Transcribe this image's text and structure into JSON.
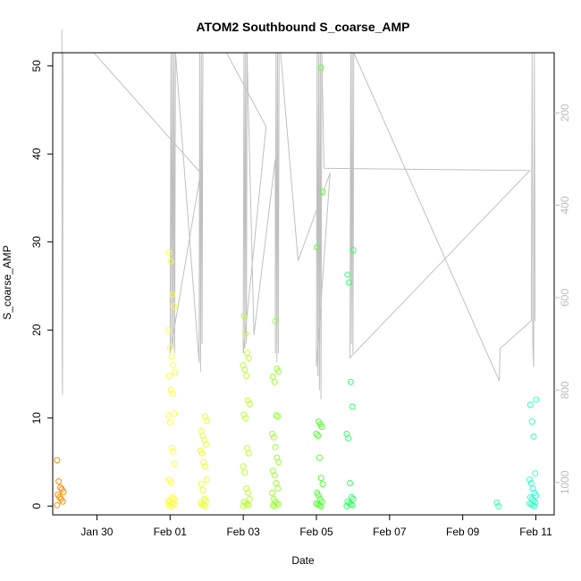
{
  "chart_data": {
    "type": "scatter",
    "title": "ATOM2 Southbound S_coarse_AMP",
    "xlabel": "Date",
    "ylabel": "S_coarse_AMP",
    "x_ticks": [
      "Jan 30",
      "Feb 01",
      "Feb 03",
      "Feb 05",
      "Feb 07",
      "Feb 09",
      "Feb 11"
    ],
    "y_ticks": [
      0,
      10,
      20,
      30,
      40,
      50
    ],
    "y_right_ticks": [
      200,
      400,
      600,
      800,
      1000
    ],
    "xlim": [
      "2025-01-28T19:00",
      "2025-02-11T12:00"
    ],
    "ylim": [
      -1,
      51.5
    ],
    "y_right_lim": [
      1070,
      70
    ],
    "grid": false,
    "point_clusters": [
      {
        "x": "2025-01-29T00:00",
        "color": "#ff8c00",
        "values": [
          0.1,
          0.5,
          0.8,
          1.0,
          1.3,
          1.6,
          1.9,
          2.1,
          2.8,
          5.2
        ]
      },
      {
        "x": "2025-02-01T01:00",
        "color": "#ffff33",
        "values": [
          0.0,
          0.1,
          0.2,
          0.3,
          0.4,
          0.5,
          0.6,
          0.8,
          1.0,
          2.7,
          3.0,
          4.8,
          6.2,
          6.6,
          9.5,
          10.3,
          10.5,
          12.8,
          13.2,
          14.8,
          15.2,
          16.0,
          17.0,
          18.0,
          20.0,
          22.7,
          24.0,
          27.8,
          28.8
        ]
      },
      {
        "x": "2025-02-01T22:00",
        "color": "#eaff33",
        "values": [
          0.0,
          0.1,
          0.2,
          0.4,
          0.6,
          0.8,
          1.8,
          2.5,
          3.0,
          4.5,
          5.0,
          6.0,
          6.3,
          7.0,
          7.5,
          8.0,
          8.5,
          9.7,
          10.2
        ]
      },
      {
        "x": "2025-02-03T02:00",
        "color": "#bbff33",
        "values": [
          0.0,
          0.1,
          0.2,
          0.3,
          0.5,
          0.8,
          1.5,
          2.0,
          3.8,
          4.5,
          6.0,
          6.6,
          10.0,
          10.4,
          11.6,
          12.0,
          14.8,
          15.5,
          16.0,
          16.8,
          17.4,
          19.6,
          21.6
        ]
      },
      {
        "x": "2025-02-03T21:00",
        "color": "#99ff33",
        "values": [
          0.0,
          0.1,
          0.2,
          0.3,
          0.5,
          0.8,
          1.5,
          2.0,
          2.6,
          3.5,
          4.0,
          5.0,
          5.5,
          6.7,
          7.8,
          8.2,
          10.2,
          10.3,
          14.1,
          14.7,
          15.3,
          15.6,
          21.0
        ]
      },
      {
        "x": "2025-02-05T02:00",
        "color": "#55ff33",
        "values": [
          0.0,
          0.1,
          0.2,
          0.3,
          0.5,
          0.8,
          1.2,
          1.5,
          2.5,
          3.2,
          5.5,
          8.0,
          8.2,
          9.0,
          9.3,
          9.6,
          29.4,
          35.7,
          49.8
        ]
      },
      {
        "x": "2025-02-05T22:00",
        "color": "#33ff66",
        "values": [
          0.0,
          0.1,
          0.2,
          0.3,
          0.5,
          0.8,
          1.0,
          2.6,
          7.7,
          8.2,
          11.3,
          14.1,
          25.4,
          26.3,
          29.1
        ]
      },
      {
        "x": "2025-02-10T00:00",
        "color": "#33ffaa",
        "values": [
          0.0,
          0.4
        ]
      },
      {
        "x": "2025-02-10T22:00",
        "color": "#33ffcc",
        "values": [
          0.0,
          0.1,
          0.2,
          0.3,
          0.4,
          0.6,
          0.8,
          1.0,
          1.2,
          1.5,
          2.0,
          2.6,
          3.0,
          3.7,
          7.9,
          9.6,
          11.5,
          12.1
        ]
      }
    ],
    "grey_line": {
      "color": "#c0c0c0",
      "points": [
        [
          "2025-01-29T01:00",
          20
        ],
        [
          "2025-01-29T01:12",
          730
        ],
        [
          "2025-01-29T01:24",
          810
        ],
        [
          "2025-01-29T01:48",
          70
        ],
        [
          "2025-01-29T22:00",
          70
        ],
        [
          "2025-02-01T20:00",
          330
        ],
        [
          "2025-02-01T00:00",
          720
        ],
        [
          "2025-02-01T00:30",
          70
        ],
        [
          "2025-02-01T01:00",
          700
        ],
        [
          "2025-02-01T01:30",
          70
        ],
        [
          "2025-02-01T02:00",
          710
        ],
        [
          "2025-02-01T02:30",
          70
        ],
        [
          "2025-02-01T03:00",
          720
        ],
        [
          "2025-02-01T03:30",
          70
        ],
        [
          "2025-02-01T19:00",
          740
        ],
        [
          "2025-02-01T19:30",
          70
        ],
        [
          "2025-02-01T20:00",
          760
        ],
        [
          "2025-02-01T20:30",
          70
        ],
        [
          "2025-02-01T21:00",
          700
        ],
        [
          "2025-02-01T21:30",
          70
        ],
        [
          "2025-02-02T13:00",
          70
        ],
        [
          "2025-02-03T15:00",
          230
        ],
        [
          "2025-02-03T00:00",
          720
        ],
        [
          "2025-02-03T00:30",
          70
        ],
        [
          "2025-02-03T01:00",
          710
        ],
        [
          "2025-02-03T01:30",
          70
        ],
        [
          "2025-02-03T02:00",
          700
        ],
        [
          "2025-02-03T02:30",
          70
        ],
        [
          "2025-02-03T07:00",
          680
        ],
        [
          "2025-02-03T21:00",
          300
        ],
        [
          "2025-02-03T21:00",
          720
        ],
        [
          "2025-02-03T21:30",
          70
        ],
        [
          "2025-02-03T22:00",
          740
        ],
        [
          "2025-02-03T22:30",
          70
        ],
        [
          "2025-02-03T23:00",
          720
        ],
        [
          "2025-02-03T23:30",
          70
        ],
        [
          "2025-02-04T00:30",
          70
        ],
        [
          "2025-02-04T12:00",
          520
        ],
        [
          "2025-02-05T09:00",
          330
        ],
        [
          "2025-02-05T00:00",
          750
        ],
        [
          "2025-02-05T00:30",
          70
        ],
        [
          "2025-02-05T01:00",
          770
        ],
        [
          "2025-02-05T01:30",
          70
        ],
        [
          "2025-02-05T02:00",
          800
        ],
        [
          "2025-02-05T02:30",
          70
        ],
        [
          "2025-02-05T03:00",
          820
        ],
        [
          "2025-02-05T03:30",
          70
        ],
        [
          "2025-02-05T05:00",
          320
        ],
        [
          "2025-02-10T20:00",
          325
        ],
        [
          "2025-02-05T22:00",
          730
        ],
        [
          "2025-02-05T22:30",
          70
        ],
        [
          "2025-02-05T23:00",
          700
        ],
        [
          "2025-02-05T23:30",
          70
        ],
        [
          "2025-02-06T00:00",
          720
        ],
        [
          "2025-02-06T00:30",
          70
        ],
        [
          "2025-02-10T00:00",
          780
        ],
        [
          "2025-02-10T00:30",
          710
        ],
        [
          "2025-02-10T21:00",
          650
        ],
        [
          "2025-02-10T21:30",
          70
        ],
        [
          "2025-02-10T22:00",
          700
        ],
        [
          "2025-02-10T22:30",
          750
        ],
        [
          "2025-02-10T23:00",
          70
        ],
        [
          "2025-02-10T23:30",
          650
        ]
      ]
    }
  }
}
